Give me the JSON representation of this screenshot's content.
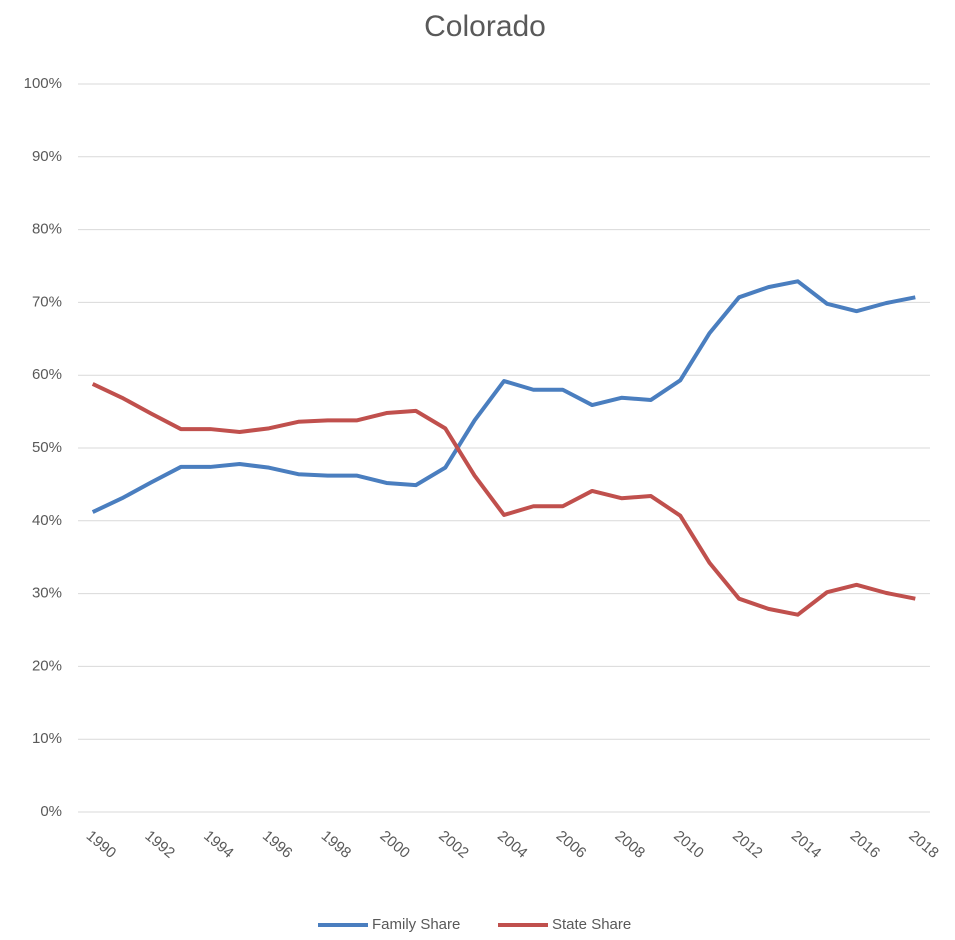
{
  "chart_data": {
    "type": "line",
    "title": "Colorado",
    "categories": [
      "1990",
      null,
      "1992",
      null,
      "1994",
      null,
      "1996",
      null,
      "1998",
      null,
      "2000",
      null,
      "2002",
      null,
      "2004",
      null,
      "2006",
      null,
      "2008",
      null,
      "2010",
      null,
      "2012",
      null,
      "2014",
      null,
      "2016",
      null,
      "2018"
    ],
    "series": [
      {
        "name": "Family Share",
        "color": "#4a7ebf",
        "values": [
          41.2,
          43.1,
          45.3,
          47.4,
          47.4,
          47.8,
          47.3,
          46.4,
          46.2,
          46.2,
          45.2,
          44.9,
          47.3,
          53.8,
          59.2,
          58.0,
          58.0,
          55.9,
          56.9,
          56.6,
          59.3,
          65.8,
          70.7,
          72.1,
          72.9,
          69.8,
          68.8,
          69.9,
          70.7
        ]
      },
      {
        "name": "State Share",
        "color": "#c0504d",
        "values": [
          58.8,
          56.9,
          54.7,
          52.6,
          52.6,
          52.2,
          52.7,
          53.6,
          53.8,
          53.8,
          54.8,
          55.1,
          52.7,
          46.2,
          40.8,
          42.0,
          42.0,
          44.1,
          43.1,
          43.4,
          40.7,
          34.2,
          29.3,
          27.9,
          27.1,
          30.2,
          31.2,
          30.1,
          29.3
        ]
      }
    ],
    "ylim": [
      0,
      100
    ],
    "yticks": [
      {
        "value": 0,
        "label": "0%"
      },
      {
        "value": 10,
        "label": "10%"
      },
      {
        "value": 20,
        "label": "20%"
      },
      {
        "value": 30,
        "label": "30%"
      },
      {
        "value": 40,
        "label": "40%"
      },
      {
        "value": 50,
        "label": "50%"
      },
      {
        "value": 60,
        "label": "60%"
      },
      {
        "value": 70,
        "label": "70%"
      },
      {
        "value": 80,
        "label": "80%"
      },
      {
        "value": 90,
        "label": "90%"
      },
      {
        "value": 100,
        "label": "100%"
      }
    ],
    "grid": true,
    "legend": "bottom"
  }
}
